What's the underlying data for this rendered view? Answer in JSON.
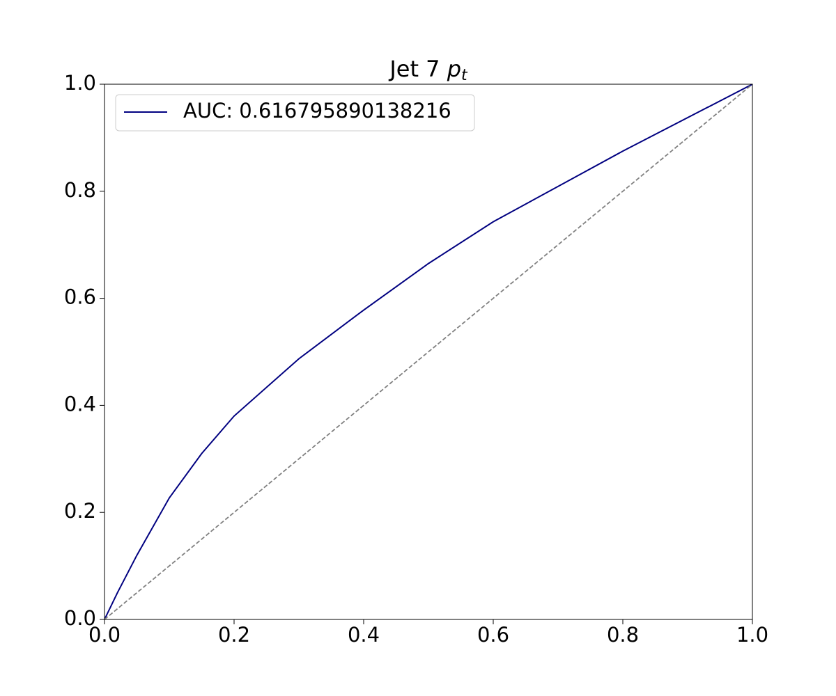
{
  "chart_data": {
    "type": "line",
    "title": {
      "text": "Jet 7",
      "symbol": "p",
      "subscript": "t"
    },
    "xlim": [
      0,
      1
    ],
    "ylim": [
      0,
      1
    ],
    "xticks": [
      {
        "value": 0,
        "label": "0.0"
      },
      0.2,
      0.4,
      0.6,
      0.8,
      {
        "value": 1,
        "label": "1.0"
      }
    ],
    "yticks": [
      {
        "value": 0,
        "label": "0.0"
      },
      0.2,
      0.4,
      0.6,
      0.8,
      {
        "value": 1,
        "label": "1.0"
      }
    ],
    "legend": "upper left",
    "series": [
      {
        "name": "AUC: 0.616795890138216",
        "color": "#000080",
        "dash": "solid",
        "x": [
          0,
          0.02,
          0.05,
          0.1,
          0.15,
          0.2,
          0.3,
          0.4,
          0.5,
          0.6,
          0.8,
          1
        ],
        "values": [
          0,
          0.05,
          0.12,
          0.227,
          0.31,
          0.38,
          0.487,
          0.578,
          0.665,
          0.743,
          0.875,
          1
        ]
      },
      {
        "color": "#808080",
        "dash": "dashed",
        "x": [
          0,
          1
        ],
        "values": [
          0,
          1
        ]
      }
    ]
  }
}
